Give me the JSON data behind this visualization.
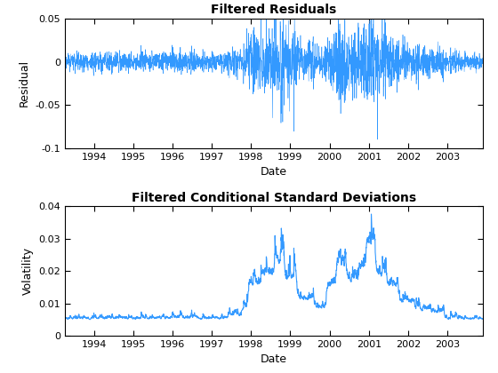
{
  "title1": "Filtered Residuals",
  "title2": "Filtered Conditional Standard Deviations",
  "xlabel": "Date",
  "ylabel1": "Residual",
  "ylabel2": "Volatility",
  "ylim1": [
    -0.1,
    0.05
  ],
  "ylim2": [
    0,
    0.04
  ],
  "yticks1": [
    -0.1,
    -0.05,
    0,
    0.05
  ],
  "yticks2": [
    0,
    0.01,
    0.02,
    0.03,
    0.04
  ],
  "line_color": "#3399FF",
  "background": "#ffffff",
  "figsize": [
    5.6,
    4.2
  ],
  "dpi": 100,
  "random_seed": 777
}
